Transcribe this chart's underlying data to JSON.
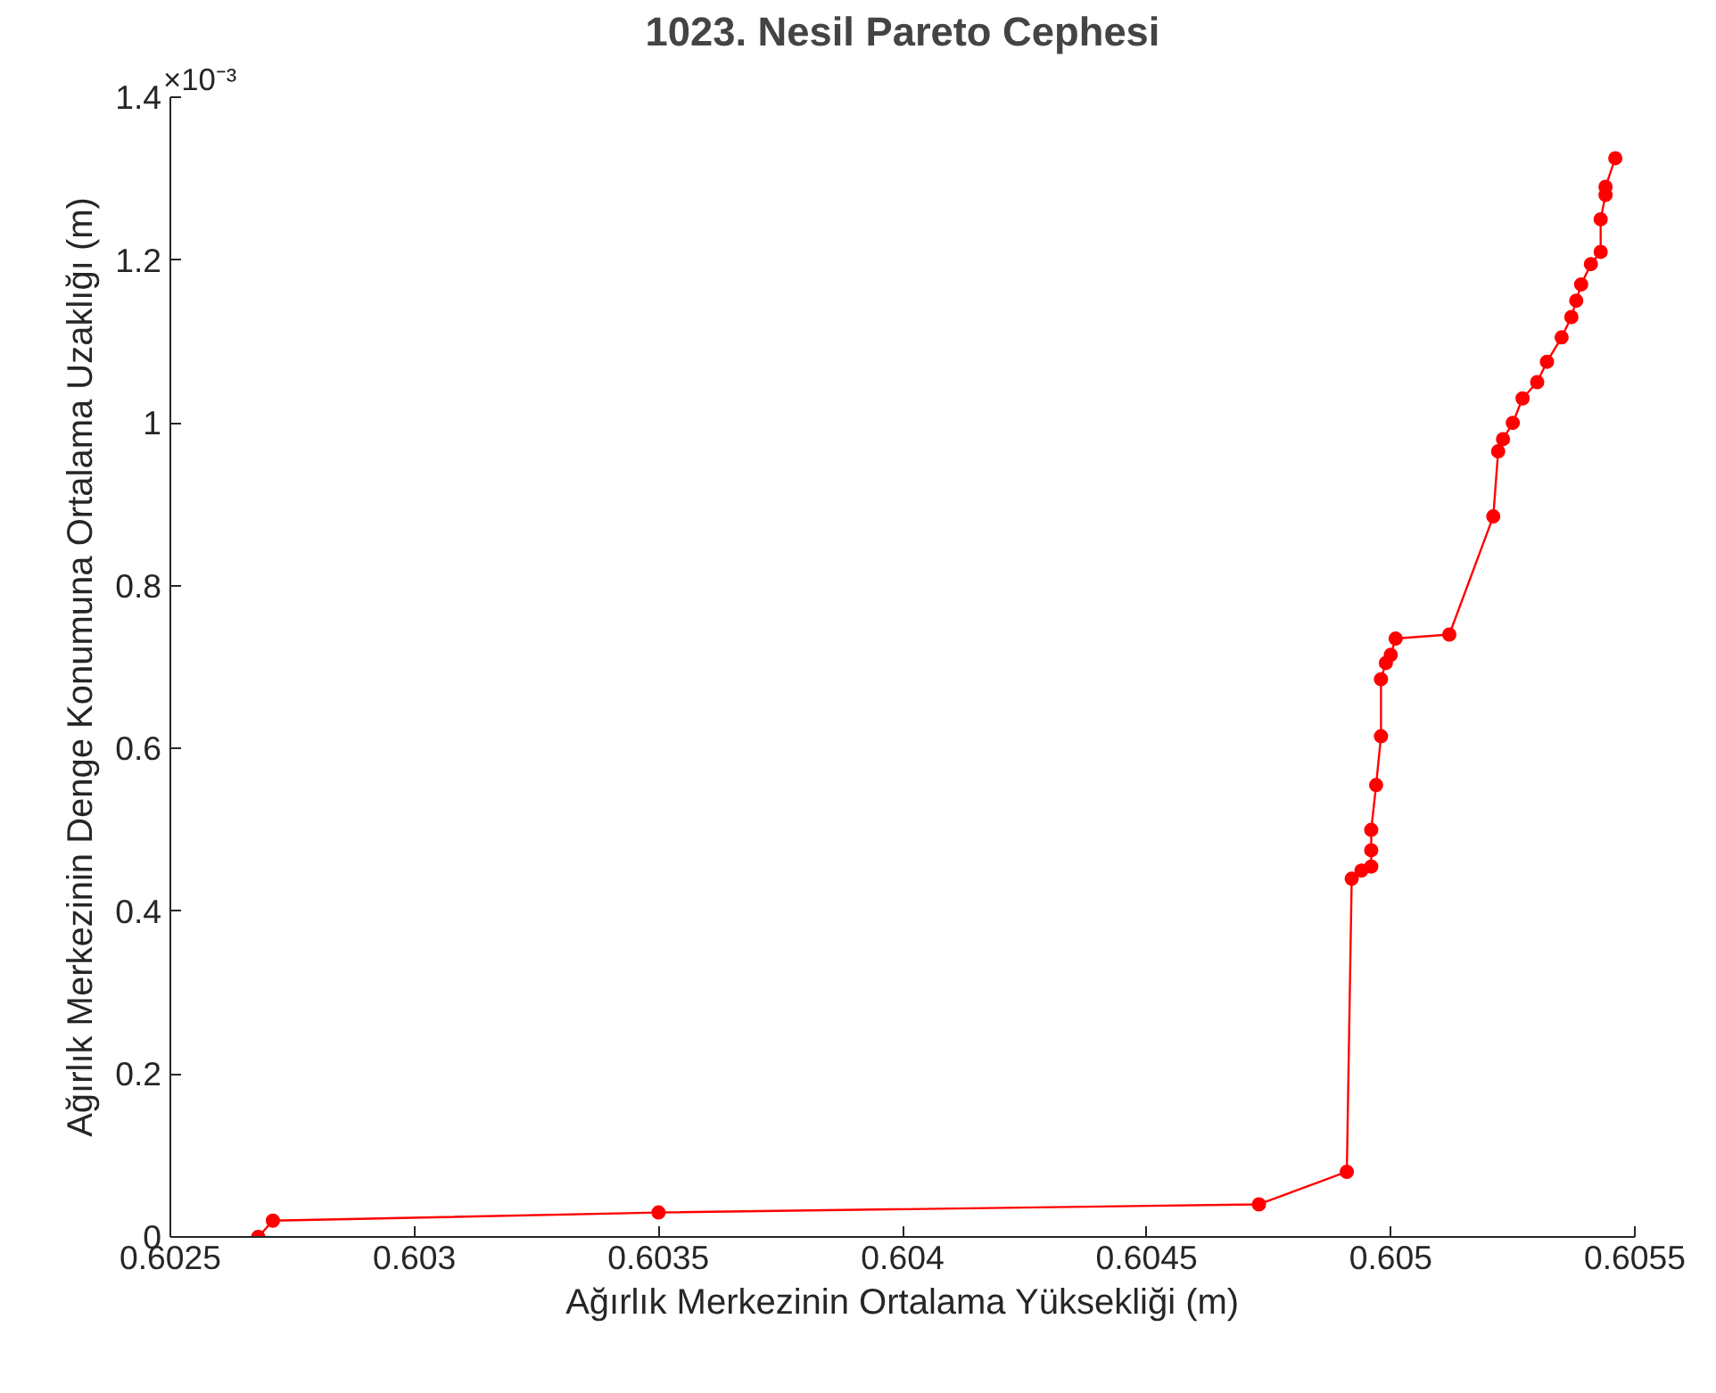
{
  "chart_data": {
    "type": "line",
    "title": "1023. Nesil Pareto Cephesi",
    "xlabel": "Ağırlık Merkezinin Ortalama Yüksekliği (m)",
    "ylabel": "Ağırlık Merkezinin Denge Konumuna Ortalama Uzaklığı (m)",
    "annotations": [
      "×10⁻³"
    ],
    "series": [
      {
        "color": "#ff0000",
        "x": [
          0.60268,
          0.60271,
          0.6035,
          0.60473,
          0.60491,
          0.60492,
          0.60494,
          0.60496,
          0.60496,
          0.60496,
          0.60497,
          0.60498,
          0.60498,
          0.60499,
          0.605,
          0.60501,
          0.60512,
          0.60521,
          0.60522,
          0.60523,
          0.60525,
          0.60527,
          0.6053,
          0.60532,
          0.60535,
          0.60537,
          0.60538,
          0.60539,
          0.60541,
          0.60543,
          0.60543,
          0.60544,
          0.60544,
          0.60546
        ],
        "values": [
          0,
          0.02,
          0.03,
          0.04,
          0.08,
          0.44,
          0.45,
          0.455,
          0.475,
          0.5,
          0.555,
          0.615,
          0.685,
          0.705,
          0.715,
          0.735,
          0.74,
          0.885,
          0.965,
          0.98,
          1.0,
          1.03,
          1.05,
          1.075,
          1.105,
          1.13,
          1.15,
          1.17,
          1.195,
          1.21,
          1.25,
          1.28,
          1.29,
          1.325
        ]
      }
    ],
    "xlim": [
      0.6025,
      0.6055
    ],
    "xticks": [
      0.6025,
      0.603,
      0.6035,
      0.604,
      0.6045,
      0.605,
      0.6055
    ],
    "ylim": [
      0,
      1.4
    ],
    "yticks": [
      0,
      0.2,
      0.4,
      0.6,
      0.8,
      1,
      1.2,
      1.4
    ],
    "grid": false,
    "marker": "circle",
    "line_style": "solid"
  }
}
